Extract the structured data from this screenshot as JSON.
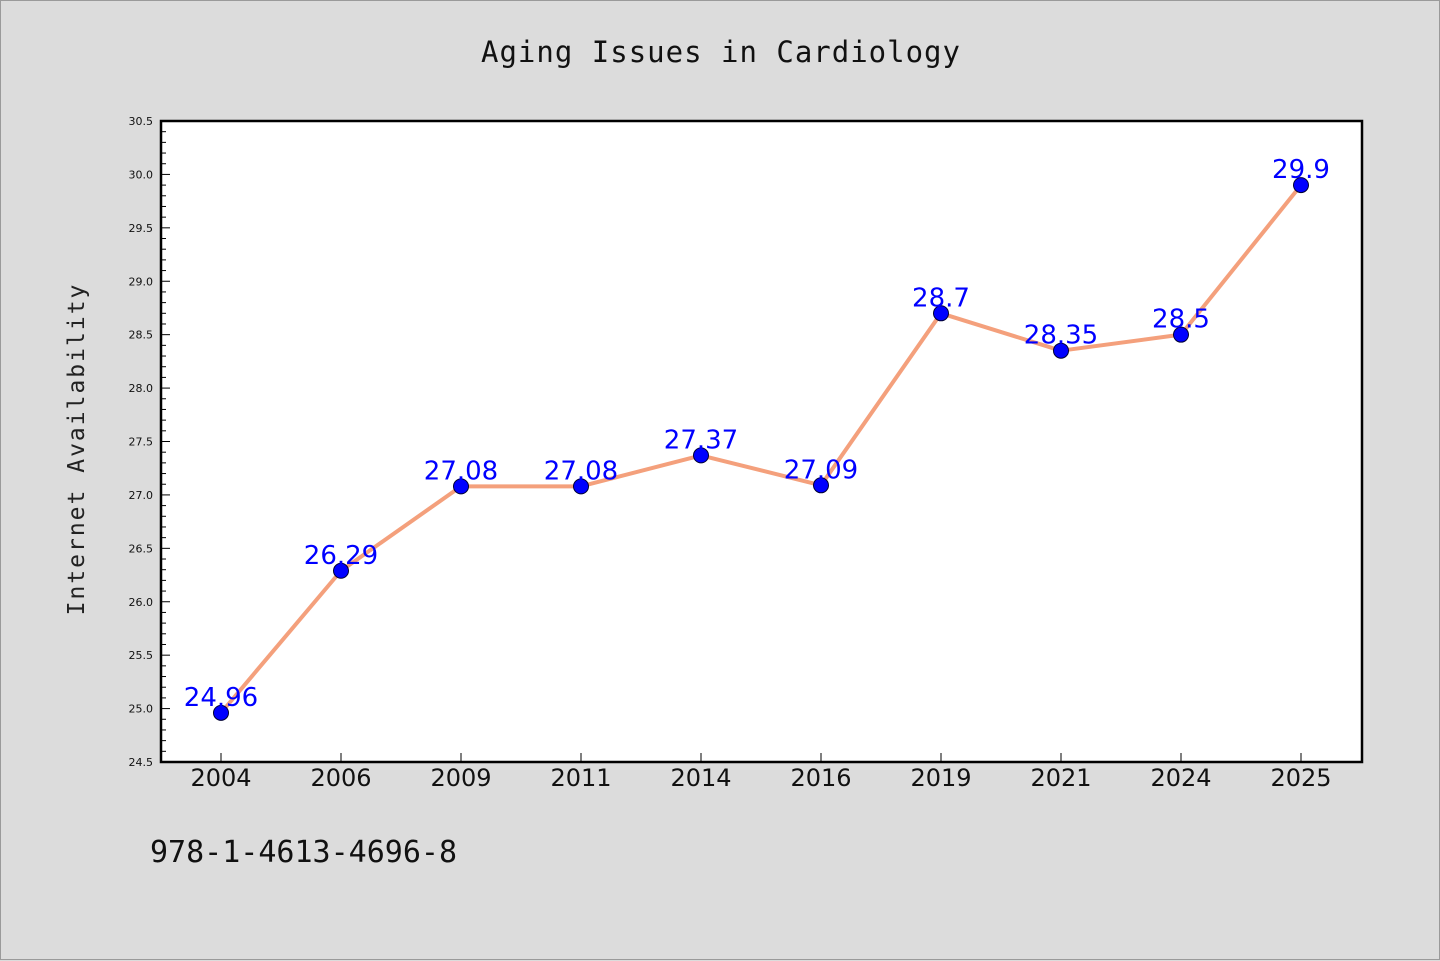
{
  "colors": {
    "background": "#dcdcdc",
    "plot_background": "#ffffff",
    "line": "#f4a07c",
    "marker": "#0000ff",
    "data_label": "#0000ff"
  },
  "footer": {
    "isbn": "978-1-4613-4696-8"
  },
  "chart_data": {
    "type": "line",
    "title": "Aging Issues in Cardiology",
    "xlabel": "",
    "ylabel": "Internet Availability",
    "categories": [
      "2004",
      "2006",
      "2009",
      "2011",
      "2014",
      "2016",
      "2019",
      "2021",
      "2024",
      "2025"
    ],
    "series": [
      {
        "values": [
          24.96,
          26.29,
          27.08,
          27.08,
          27.37,
          27.09,
          28.7,
          28.35,
          28.5,
          29.9
        ],
        "labels": [
          "24.96",
          "26.29",
          "27.08",
          "27.08",
          "27.37",
          "27.09",
          "28.7",
          "28.35",
          "28.5",
          "29.9"
        ]
      }
    ],
    "ylim": [
      24.5,
      30.5
    ],
    "yticks": [
      "24.5",
      "25.0",
      "25.5",
      "26.0",
      "26.5",
      "27.0",
      "27.5",
      "28.0",
      "28.5",
      "29.0",
      "29.5",
      "30.0",
      "30.5"
    ],
    "grid": false,
    "legend": "none"
  }
}
